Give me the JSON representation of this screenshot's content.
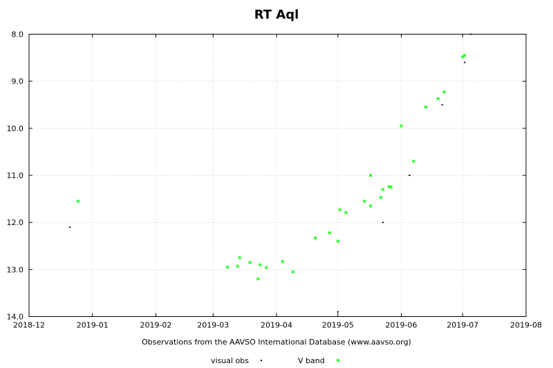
{
  "chart_data": {
    "type": "scatter",
    "title": "RT Aql",
    "xlabel": "Observations from the AAVSO International Database (www.aavso.org)",
    "ylabel": "",
    "x_type": "date",
    "xlim": [
      "2018-12-01",
      "2019-08-01"
    ],
    "ylim": [
      8.0,
      14.0
    ],
    "y_inverted": true,
    "x_ticks": [
      "2018-12",
      "2019-01",
      "2019-02",
      "2019-03",
      "2019-04",
      "2019-05",
      "2019-06",
      "2019-07",
      "2019-08"
    ],
    "y_ticks": [
      "8.0",
      "9.0",
      "10.0",
      "11.0",
      "12.0",
      "13.0",
      "14.0"
    ],
    "grid": true,
    "legend_position": "bottom-center",
    "series": [
      {
        "name": "visual obs",
        "color": "#000000",
        "marker": "dot",
        "points": [
          {
            "x": "2018-12-21",
            "y": 12.1
          },
          {
            "x": "2019-05-01",
            "y": 13.9
          },
          {
            "x": "2019-05-23",
            "y": 12.0
          },
          {
            "x": "2019-06-05",
            "y": 11.0
          },
          {
            "x": "2019-06-21",
            "y": 9.5
          },
          {
            "x": "2019-07-02",
            "y": 8.6
          },
          {
            "x": "2019-07-05",
            "y": 8.0
          }
        ]
      },
      {
        "name": "V band",
        "color": "#33ff33",
        "marker": "square",
        "points": [
          {
            "x": "2018-12-25",
            "y": 11.55
          },
          {
            "x": "2019-03-08",
            "y": 12.95
          },
          {
            "x": "2019-03-13",
            "y": 12.93
          },
          {
            "x": "2019-03-14",
            "y": 12.75
          },
          {
            "x": "2019-03-19",
            "y": 12.85
          },
          {
            "x": "2019-03-23",
            "y": 13.2
          },
          {
            "x": "2019-03-24",
            "y": 12.9
          },
          {
            "x": "2019-03-27",
            "y": 12.96
          },
          {
            "x": "2019-04-04",
            "y": 12.83
          },
          {
            "x": "2019-04-09",
            "y": 13.05
          },
          {
            "x": "2019-04-20",
            "y": 12.33
          },
          {
            "x": "2019-04-27",
            "y": 12.22
          },
          {
            "x": "2019-05-01",
            "y": 12.4
          },
          {
            "x": "2019-05-02",
            "y": 11.73
          },
          {
            "x": "2019-05-05",
            "y": 11.79
          },
          {
            "x": "2019-05-14",
            "y": 11.55
          },
          {
            "x": "2019-05-17",
            "y": 11.65
          },
          {
            "x": "2019-05-17",
            "y": 11.0
          },
          {
            "x": "2019-05-22",
            "y": 11.47
          },
          {
            "x": "2019-05-23",
            "y": 11.3
          },
          {
            "x": "2019-05-26",
            "y": 11.24
          },
          {
            "x": "2019-05-27",
            "y": 11.25
          },
          {
            "x": "2019-06-01",
            "y": 9.95
          },
          {
            "x": "2019-06-07",
            "y": 10.7
          },
          {
            "x": "2019-06-13",
            "y": 9.55
          },
          {
            "x": "2019-06-19",
            "y": 9.37
          },
          {
            "x": "2019-06-22",
            "y": 9.23
          },
          {
            "x": "2019-07-01",
            "y": 8.48
          },
          {
            "x": "2019-07-02",
            "y": 8.45
          }
        ]
      }
    ]
  }
}
